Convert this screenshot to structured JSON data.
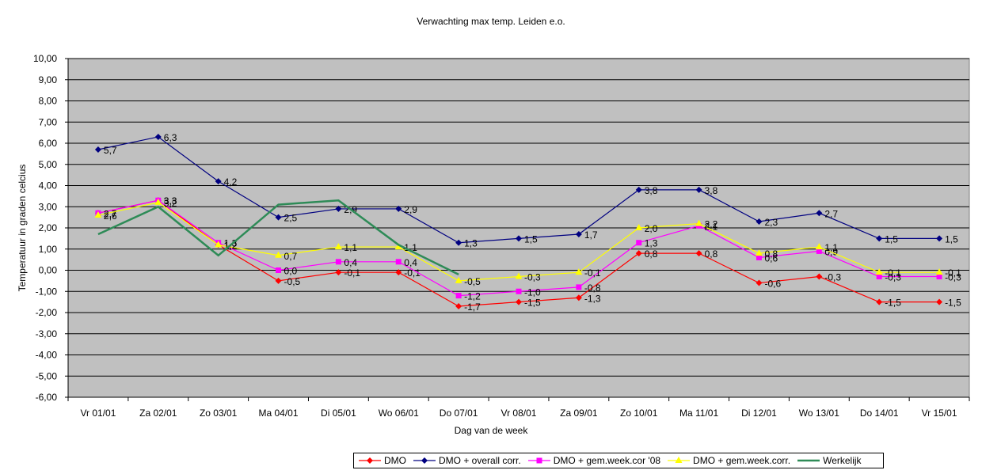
{
  "chart_data": {
    "type": "line",
    "title": "Verwachting max temp. Leiden e.o.",
    "xlabel": "Dag van de week",
    "ylabel": "Temperatuur in graden celcius",
    "ylim": [
      -6,
      10
    ],
    "ytick_step": 1,
    "grid": true,
    "plot_background": "#c0c0c0",
    "legend_position": "bottom",
    "categories": [
      "Vr 01/01",
      "Za 02/01",
      "Zo 03/01",
      "Ma 04/01",
      "Di 05/01",
      "Wo 06/01",
      "Do 07/01",
      "Vr 08/01",
      "Za 09/01",
      "Zo 10/01",
      "Ma 11/01",
      "Di 12/01",
      "Wo 13/01",
      "Do 14/01",
      "Vr 15/01"
    ],
    "series": [
      {
        "name": "DMO",
        "color": "#ff0000",
        "marker": "diamond",
        "labels": true,
        "values": [
          2.7,
          3.3,
          1.2,
          -0.5,
          -0.1,
          -0.1,
          -1.7,
          -1.5,
          -1.3,
          0.8,
          0.8,
          -0.6,
          -0.3,
          -1.5,
          -1.5
        ]
      },
      {
        "name": "DMO + overall corr.",
        "color": "#000080",
        "marker": "diamond",
        "labels": true,
        "values": [
          5.7,
          6.3,
          4.2,
          2.5,
          2.9,
          2.9,
          1.3,
          1.5,
          1.7,
          3.8,
          3.8,
          2.3,
          2.7,
          1.5,
          1.5
        ]
      },
      {
        "name": "DMO + gem.week.cor '08",
        "color": "#ff00ff",
        "marker": "square",
        "labels": true,
        "values": [
          2.7,
          3.3,
          1.3,
          0.0,
          0.4,
          0.4,
          -1.2,
          -1.0,
          -0.8,
          1.3,
          2.1,
          0.6,
          0.9,
          -0.3,
          -0.3
        ]
      },
      {
        "name": "DMO + gem.week.corr.",
        "color": "#ffff00",
        "marker": "triangle",
        "labels": true,
        "values": [
          2.6,
          3.2,
          1.2,
          0.7,
          1.1,
          1.1,
          -0.5,
          -0.3,
          -0.1,
          2.0,
          2.2,
          0.8,
          1.1,
          -0.1,
          -0.1
        ]
      },
      {
        "name": "Werkelijk",
        "color": "#2e8b57",
        "marker": "none",
        "labels": false,
        "x": [
          0,
          1,
          2,
          3,
          4,
          5,
          6
        ],
        "values": [
          1.7,
          3.0,
          0.7,
          3.1,
          3.3,
          1.2,
          -0.2
        ]
      }
    ]
  }
}
